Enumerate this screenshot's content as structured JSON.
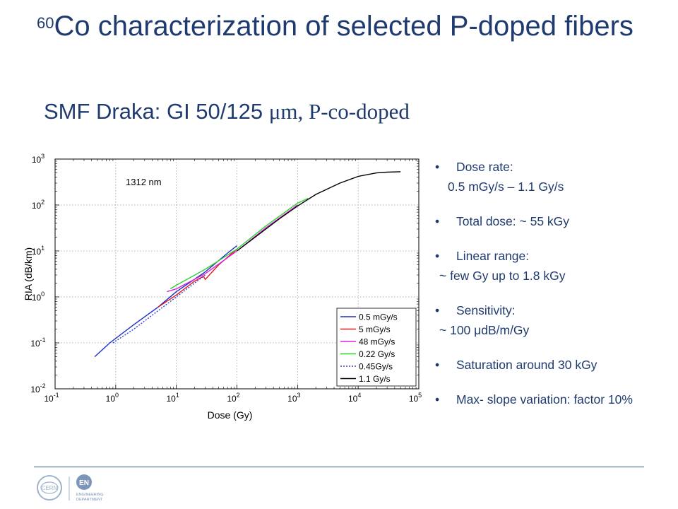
{
  "slide": {
    "title_sup": "60",
    "title_main": "Co characterization of selected P-doped fibers",
    "subtitle_sans": "SMF Draka: GI 50/125 ",
    "subtitle_serif": "μm, P-co-doped"
  },
  "bullets": {
    "dose_rate_label": "Dose rate:",
    "dose_rate_value": "0.5 mGy/s – 1.1 Gy/s",
    "total_dose": "Total dose: ~ 55 kGy",
    "linear_range_label": "Linear range:",
    "linear_range_value": "~ few Gy up to 1.8 kGy",
    "sensitivity_label": "Sensitivity:",
    "sensitivity_value": "~ 100 μdB/m/Gy",
    "saturation": "Saturation around 30 kGy",
    "max_slope": "Max- slope variation: factor 10%"
  },
  "logos": {
    "cern": "CERN",
    "en": "EN",
    "en_sub1": "ENGINEERING",
    "en_sub2": "DEPARTMENT"
  },
  "chart_data": {
    "type": "line",
    "annotation": "1312 nm",
    "xlabel": "Dose (Gy)",
    "ylabel": "RIA (dB/km)",
    "xscale": "log",
    "yscale": "log",
    "xlim": [
      0.1,
      100000
    ],
    "ylim": [
      0.01,
      1000
    ],
    "grid": true,
    "legend_position": "bottom-right",
    "x_ticks": [
      {
        "base": "10",
        "exp": "-1"
      },
      {
        "base": "10",
        "exp": "0"
      },
      {
        "base": "10",
        "exp": "1"
      },
      {
        "base": "10",
        "exp": "2"
      },
      {
        "base": "10",
        "exp": "3"
      },
      {
        "base": "10",
        "exp": "4"
      },
      {
        "base": "10",
        "exp": "5"
      }
    ],
    "y_ticks": [
      {
        "base": "10",
        "exp": "-2"
      },
      {
        "base": "10",
        "exp": "-1"
      },
      {
        "base": "10",
        "exp": "0"
      },
      {
        "base": "10",
        "exp": "1"
      },
      {
        "base": "10",
        "exp": "2"
      },
      {
        "base": "10",
        "exp": "3"
      }
    ],
    "series": [
      {
        "name": "0.5 mGy/s",
        "color": "#1a2ecc",
        "dash": "",
        "x": [
          0.45,
          0.8,
          2,
          5,
          10,
          30,
          70,
          100
        ],
        "y": [
          0.05,
          0.1,
          0.25,
          0.6,
          1.3,
          3.5,
          9,
          13
        ]
      },
      {
        "name": "5 mGy/s",
        "color": "#e01a1a",
        "dash": "",
        "x": [
          5,
          10,
          20,
          28,
          30,
          50,
          100
        ],
        "y": [
          0.6,
          1.1,
          2.2,
          2.8,
          2.4,
          5.0,
          11
        ]
      },
      {
        "name": "48 mGy/s",
        "color": "#e020e0",
        "dash": "",
        "x": [
          7,
          10,
          30,
          100,
          300,
          1000
        ],
        "y": [
          1.3,
          1.5,
          3.2,
          10,
          32,
          100
        ]
      },
      {
        "name": "0.22 Gy/s",
        "color": "#30d030",
        "dash": "",
        "x": [
          8,
          10,
          30,
          100,
          300,
          1000,
          1500
        ],
        "y": [
          1.5,
          1.8,
          4,
          11,
          35,
          110,
          140
        ]
      },
      {
        "name": "0.45Gy/s",
        "color": "#3040d0",
        "dash": "2,2",
        "x": [
          0.9,
          2,
          5,
          10,
          30
        ],
        "y": [
          0.1,
          0.2,
          0.5,
          1.0,
          3
        ]
      },
      {
        "name": "1.1 Gy/s",
        "color": "#000000",
        "dash": "",
        "x": [
          100,
          200,
          500,
          1000,
          2000,
          5000,
          10000,
          20000,
          30000,
          50000
        ],
        "y": [
          10,
          20,
          50,
          95,
          170,
          300,
          420,
          500,
          520,
          530
        ]
      }
    ]
  }
}
